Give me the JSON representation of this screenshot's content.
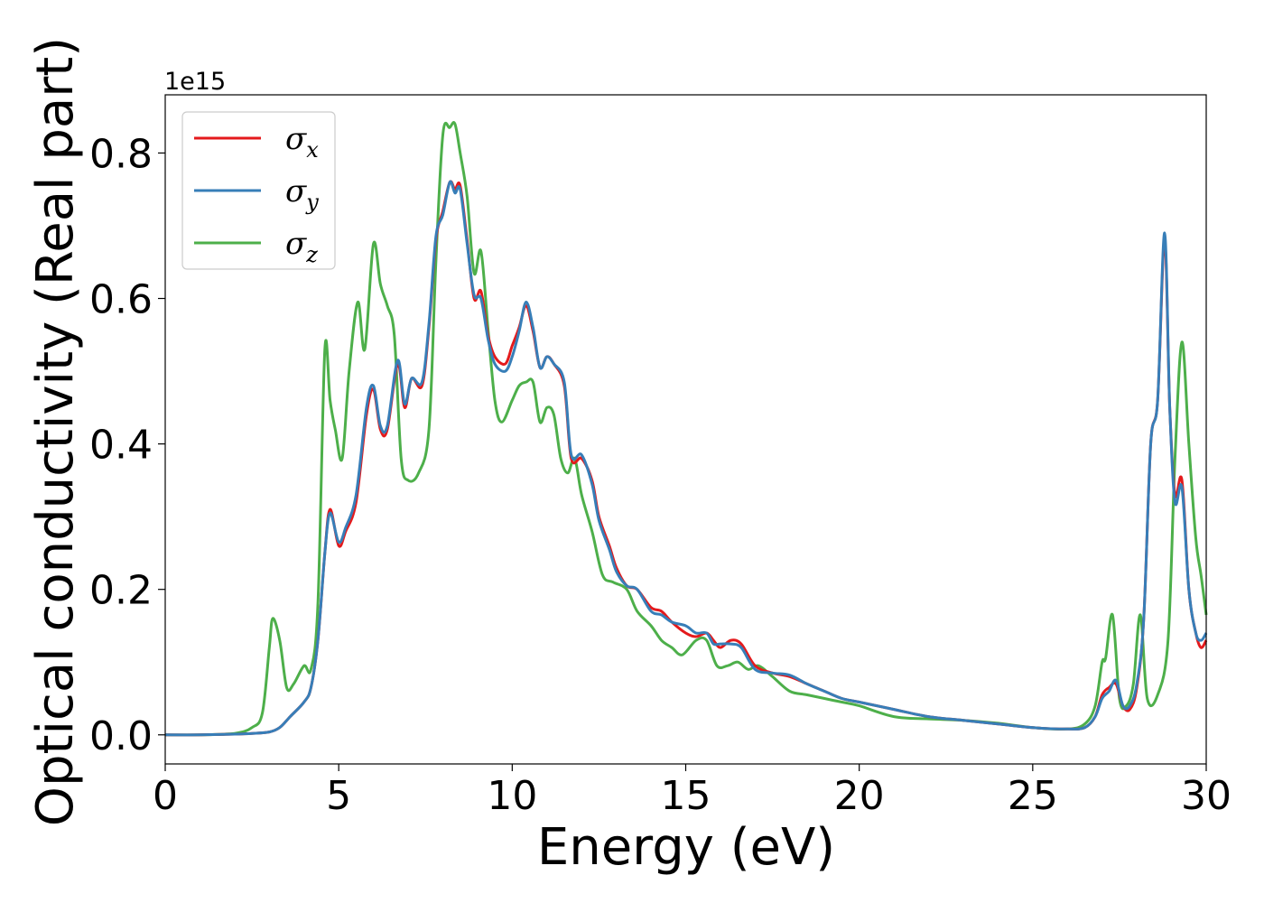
{
  "chart_data": {
    "type": "line",
    "xlabel": "Energy (eV)",
    "ylabel": "Optical conductivity (Real part)",
    "y_offset_label": "1e15",
    "xlim": [
      0,
      30
    ],
    "ylim": [
      -0.04,
      0.88
    ],
    "xticks": [
      0,
      5,
      10,
      15,
      20,
      25,
      30
    ],
    "xtick_labels": [
      "0",
      "5",
      "10",
      "15",
      "20",
      "25",
      "30"
    ],
    "yticks": [
      0.0,
      0.2,
      0.4,
      0.6,
      0.8
    ],
    "ytick_labels": [
      "0.0",
      "0.2",
      "0.4",
      "0.6",
      "0.8"
    ],
    "grid": false,
    "legend_position": "top-left",
    "series": [
      {
        "name": "σx",
        "symbol": "σ",
        "subscript": "x",
        "color": "#e41a1c",
        "x": [
          0,
          1,
          2,
          2.5,
          3,
          3.3,
          3.6,
          4.0,
          4.2,
          4.4,
          4.6,
          4.75,
          5.0,
          5.2,
          5.5,
          5.8,
          6.0,
          6.2,
          6.4,
          6.7,
          6.9,
          7.1,
          7.4,
          7.6,
          7.8,
          8.0,
          8.2,
          8.35,
          8.5,
          8.7,
          8.9,
          9.1,
          9.3,
          9.5,
          9.8,
          10.0,
          10.2,
          10.4,
          10.6,
          10.8,
          11.0,
          11.2,
          11.5,
          11.7,
          12.0,
          12.3,
          12.5,
          12.8,
          13.0,
          13.3,
          13.6,
          14.0,
          14.3,
          14.6,
          15.0,
          15.3,
          15.6,
          15.8,
          16.0,
          16.3,
          16.6,
          17.0,
          17.5,
          18.0,
          18.5,
          19.0,
          19.5,
          20.0,
          21.0,
          22.0,
          23.0,
          24.0,
          25.0,
          26.0,
          26.5,
          26.8,
          27.0,
          27.2,
          27.4,
          27.6,
          27.8,
          28.0,
          28.2,
          28.4,
          28.6,
          28.8,
          28.95,
          29.1,
          29.3,
          29.5,
          29.7,
          29.85,
          30.0
        ],
        "values": [
          0.0,
          0.0,
          0.001,
          0.002,
          0.004,
          0.01,
          0.025,
          0.045,
          0.065,
          0.13,
          0.25,
          0.31,
          0.26,
          0.28,
          0.32,
          0.44,
          0.475,
          0.42,
          0.42,
          0.51,
          0.45,
          0.49,
          0.48,
          0.56,
          0.68,
          0.72,
          0.76,
          0.75,
          0.755,
          0.68,
          0.6,
          0.61,
          0.55,
          0.52,
          0.51,
          0.535,
          0.56,
          0.59,
          0.555,
          0.505,
          0.52,
          0.51,
          0.48,
          0.38,
          0.38,
          0.35,
          0.3,
          0.26,
          0.23,
          0.205,
          0.2,
          0.175,
          0.17,
          0.155,
          0.14,
          0.135,
          0.14,
          0.13,
          0.12,
          0.13,
          0.125,
          0.095,
          0.085,
          0.08,
          0.07,
          0.06,
          0.05,
          0.045,
          0.035,
          0.025,
          0.02,
          0.015,
          0.01,
          0.008,
          0.01,
          0.025,
          0.055,
          0.065,
          0.07,
          0.04,
          0.035,
          0.065,
          0.16,
          0.4,
          0.46,
          0.68,
          0.45,
          0.33,
          0.35,
          0.2,
          0.14,
          0.12,
          0.13
        ]
      },
      {
        "name": "σy",
        "symbol": "σ",
        "subscript": "y",
        "color": "#377eb8",
        "x": [
          0,
          1,
          2,
          2.5,
          3,
          3.3,
          3.6,
          4.0,
          4.2,
          4.4,
          4.6,
          4.75,
          5.0,
          5.2,
          5.5,
          5.8,
          6.0,
          6.2,
          6.4,
          6.7,
          6.9,
          7.1,
          7.4,
          7.6,
          7.8,
          8.0,
          8.2,
          8.35,
          8.5,
          8.7,
          8.9,
          9.1,
          9.3,
          9.5,
          9.8,
          10.0,
          10.2,
          10.4,
          10.6,
          10.8,
          11.0,
          11.2,
          11.5,
          11.7,
          12.0,
          12.3,
          12.5,
          12.8,
          13.0,
          13.3,
          13.6,
          14.0,
          14.3,
          14.6,
          15.0,
          15.3,
          15.6,
          15.8,
          16.0,
          16.3,
          16.6,
          17.0,
          17.5,
          18.0,
          18.5,
          19.0,
          19.5,
          20.0,
          21.0,
          22.0,
          23.0,
          24.0,
          25.0,
          26.0,
          26.5,
          26.8,
          27.0,
          27.2,
          27.4,
          27.6,
          27.8,
          28.0,
          28.2,
          28.4,
          28.6,
          28.8,
          28.95,
          29.1,
          29.3,
          29.5,
          29.7,
          29.85,
          30.0
        ],
        "values": [
          0.0,
          0.0,
          0.001,
          0.002,
          0.004,
          0.01,
          0.025,
          0.045,
          0.065,
          0.13,
          0.25,
          0.305,
          0.265,
          0.285,
          0.33,
          0.45,
          0.48,
          0.425,
          0.425,
          0.515,
          0.455,
          0.49,
          0.485,
          0.565,
          0.685,
          0.715,
          0.76,
          0.745,
          0.75,
          0.675,
          0.605,
          0.6,
          0.545,
          0.51,
          0.5,
          0.52,
          0.555,
          0.595,
          0.56,
          0.505,
          0.52,
          0.51,
          0.485,
          0.385,
          0.385,
          0.345,
          0.295,
          0.255,
          0.225,
          0.205,
          0.2,
          0.17,
          0.165,
          0.155,
          0.15,
          0.14,
          0.14,
          0.125,
          0.125,
          0.125,
          0.12,
          0.09,
          0.085,
          0.082,
          0.07,
          0.06,
          0.05,
          0.045,
          0.035,
          0.025,
          0.02,
          0.015,
          0.01,
          0.008,
          0.01,
          0.025,
          0.05,
          0.06,
          0.075,
          0.04,
          0.04,
          0.07,
          0.16,
          0.4,
          0.46,
          0.69,
          0.45,
          0.32,
          0.34,
          0.2,
          0.14,
          0.13,
          0.14
        ]
      },
      {
        "name": "σz",
        "symbol": "σ",
        "subscript": "z",
        "color": "#4daf4a",
        "x": [
          0,
          1,
          2,
          2.5,
          2.8,
          3.0,
          3.1,
          3.3,
          3.5,
          3.7,
          4.0,
          4.2,
          4.4,
          4.6,
          4.75,
          4.9,
          5.1,
          5.3,
          5.55,
          5.75,
          6.0,
          6.2,
          6.4,
          6.6,
          6.8,
          7.0,
          7.3,
          7.6,
          7.8,
          8.0,
          8.2,
          8.35,
          8.5,
          8.7,
          8.9,
          9.1,
          9.3,
          9.5,
          9.7,
          10.0,
          10.2,
          10.4,
          10.6,
          10.8,
          11.0,
          11.2,
          11.4,
          11.6,
          11.8,
          12.0,
          12.3,
          12.6,
          12.9,
          13.3,
          13.6,
          14.0,
          14.3,
          14.6,
          14.9,
          15.3,
          15.6,
          15.9,
          16.2,
          16.5,
          16.8,
          17.1,
          17.5,
          18.0,
          18.5,
          19.0,
          19.5,
          20.0,
          21.0,
          22.0,
          23.0,
          24.0,
          25.0,
          26.0,
          26.5,
          26.8,
          27.0,
          27.1,
          27.3,
          27.5,
          27.7,
          27.9,
          28.1,
          28.3,
          28.6,
          28.9,
          29.1,
          29.3,
          29.5,
          29.7,
          29.85,
          30.0
        ],
        "values": [
          0.0,
          0.0,
          0.002,
          0.01,
          0.03,
          0.12,
          0.16,
          0.13,
          0.065,
          0.07,
          0.095,
          0.09,
          0.18,
          0.53,
          0.46,
          0.42,
          0.38,
          0.5,
          0.595,
          0.53,
          0.675,
          0.62,
          0.59,
          0.55,
          0.38,
          0.35,
          0.36,
          0.42,
          0.65,
          0.825,
          0.835,
          0.84,
          0.8,
          0.74,
          0.635,
          0.665,
          0.56,
          0.46,
          0.43,
          0.46,
          0.48,
          0.485,
          0.485,
          0.43,
          0.45,
          0.44,
          0.38,
          0.36,
          0.38,
          0.33,
          0.28,
          0.22,
          0.21,
          0.2,
          0.17,
          0.15,
          0.13,
          0.12,
          0.11,
          0.13,
          0.13,
          0.095,
          0.095,
          0.1,
          0.09,
          0.095,
          0.08,
          0.06,
          0.055,
          0.05,
          0.045,
          0.04,
          0.025,
          0.022,
          0.02,
          0.016,
          0.01,
          0.008,
          0.015,
          0.04,
          0.1,
          0.105,
          0.165,
          0.05,
          0.04,
          0.07,
          0.165,
          0.05,
          0.055,
          0.13,
          0.38,
          0.54,
          0.4,
          0.27,
          0.22,
          0.165
        ]
      }
    ]
  }
}
